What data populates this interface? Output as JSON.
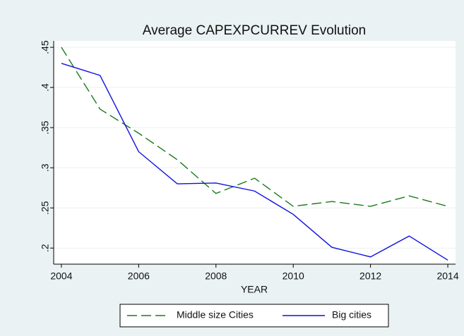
{
  "chart_data": {
    "type": "line",
    "title": "Average CAPEXPCURREV Evolution",
    "x_label": "YEAR",
    "x": [
      2004,
      2005,
      2006,
      2007,
      2008,
      2009,
      2010,
      2011,
      2012,
      2013,
      2014
    ],
    "series": [
      {
        "name": "Middle size Cities",
        "color": "#1a7a1a",
        "dash": true,
        "values": [
          0.45,
          0.373,
          0.343,
          0.31,
          0.268,
          0.287,
          0.252,
          0.258,
          0.252,
          0.265,
          0.252
        ]
      },
      {
        "name": "Big cities",
        "color": "#1010e0",
        "dash": false,
        "values": [
          0.43,
          0.415,
          0.32,
          0.28,
          0.281,
          0.271,
          0.242,
          0.201,
          0.189,
          0.215,
          0.185
        ]
      }
    ],
    "xlim": [
      2003.8,
      2014.2
    ],
    "xticks": [
      2004,
      2006,
      2008,
      2010,
      2012,
      2014
    ],
    "ylim": [
      0.18,
      0.458
    ],
    "yticks": [
      {
        "value": 0.2,
        "label": ".2"
      },
      {
        "value": 0.25,
        "label": ".25"
      },
      {
        "value": 0.3,
        "label": ".3"
      },
      {
        "value": 0.35,
        "label": ".35"
      },
      {
        "value": 0.4,
        "label": ".4"
      },
      {
        "value": 0.45,
        "label": ".45"
      }
    ],
    "grid": true,
    "legend": "bottom"
  }
}
